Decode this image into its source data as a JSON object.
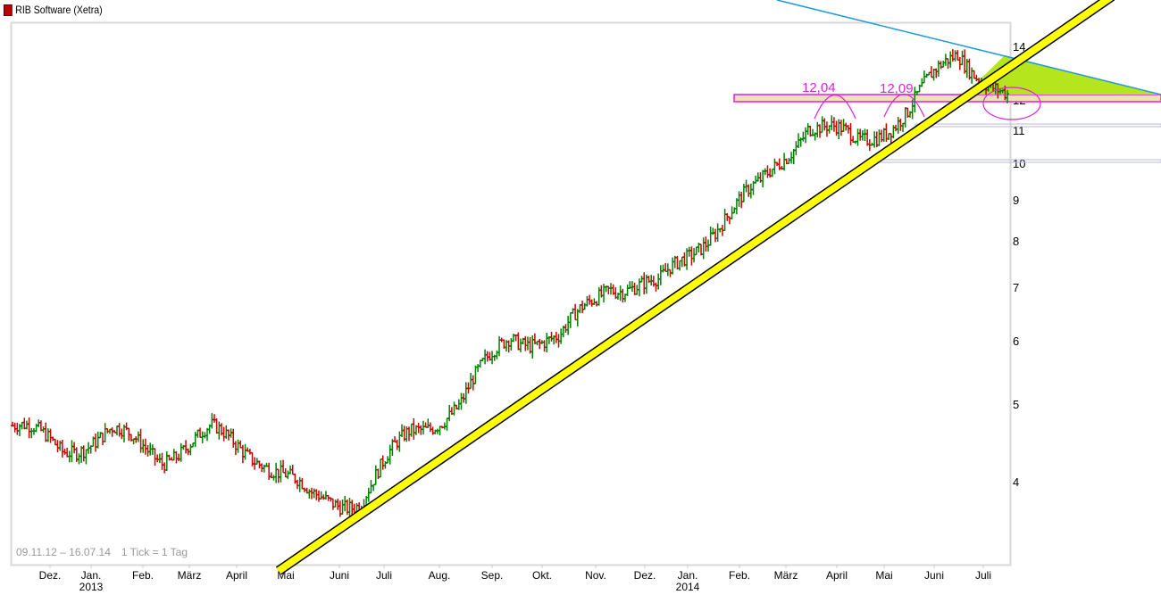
{
  "header": {
    "title": "RIB Software (Xetra)",
    "legend_color": "#c00000"
  },
  "footer": {
    "range": "09.11.12 – 16.07.14",
    "tick_info": "1 Tick = 1 Tag"
  },
  "colors": {
    "up": "#008000",
    "down": "#cc0000",
    "trend_support": "#ffff00",
    "trend_resistance": "#1e9bd7",
    "triangle_fill": "#b5e61d",
    "zone_fill": "#f0e2b4",
    "annotation": "#e020e0",
    "support_lines": "#c0c0e0"
  },
  "chart_data": {
    "type": "ohlc",
    "title": "RIB Software (Xetra)",
    "xlabel": "",
    "ylabel": "",
    "scale": "log",
    "ylim": [
      3.3,
      14.5
    ],
    "y_ticks": [
      4,
      5,
      6,
      7,
      8,
      9,
      10,
      11,
      12,
      13,
      14
    ],
    "x_ticks": [
      {
        "label": "Dez.",
        "sub": ""
      },
      {
        "label": "Jan.",
        "sub": "2013"
      },
      {
        "label": "Feb.",
        "sub": ""
      },
      {
        "label": "März",
        "sub": ""
      },
      {
        "label": "April",
        "sub": ""
      },
      {
        "label": "Mai",
        "sub": ""
      },
      {
        "label": "Juni",
        "sub": ""
      },
      {
        "label": "Juli",
        "sub": ""
      },
      {
        "label": "Aug.",
        "sub": ""
      },
      {
        "label": "Sep.",
        "sub": ""
      },
      {
        "label": "Okt.",
        "sub": ""
      },
      {
        "label": "Nov.",
        "sub": ""
      },
      {
        "label": "Dez.",
        "sub": ""
      },
      {
        "label": "Jan.",
        "sub": "2014"
      },
      {
        "label": "Feb.",
        "sub": ""
      },
      {
        "label": "März",
        "sub": ""
      },
      {
        "label": "April",
        "sub": ""
      },
      {
        "label": "Mai",
        "sub": ""
      },
      {
        "label": "Juni",
        "sub": ""
      },
      {
        "label": "Juli",
        "sub": ""
      }
    ],
    "date_range": "09.11.12 – 16.07.14",
    "approx_monthly_close": [
      {
        "month": "Nov 2012",
        "value": 4.7
      },
      {
        "month": "Dez 2012",
        "value": 4.4
      },
      {
        "month": "Jan 2013",
        "value": 4.6
      },
      {
        "month": "Feb 2013",
        "value": 4.3
      },
      {
        "month": "Mär 2013",
        "value": 4.6
      },
      {
        "month": "Apr 2013",
        "value": 4.3
      },
      {
        "month": "Mai 2013",
        "value": 3.8
      },
      {
        "month": "Jun 2013",
        "value": 3.8
      },
      {
        "month": "Jul 2013",
        "value": 4.6
      },
      {
        "month": "Aug 2013",
        "value": 5.0
      },
      {
        "month": "Sep 2013",
        "value": 6.1
      },
      {
        "month": "Okt 2013",
        "value": 6.0
      },
      {
        "month": "Nov 2013",
        "value": 7.1
      },
      {
        "month": "Dez 2013",
        "value": 7.0
      },
      {
        "month": "Jan 2014",
        "value": 8.2
      },
      {
        "month": "Feb 2014",
        "value": 9.3
      },
      {
        "month": "Mär 2014",
        "value": 11.2
      },
      {
        "month": "Apr 2014",
        "value": 10.6
      },
      {
        "month": "Mai 2014",
        "value": 11.6
      },
      {
        "month": "Jun 2014",
        "value": 13.8
      },
      {
        "month": "Jul 2014",
        "value": 12.0
      }
    ],
    "annotations": [
      {
        "text": "12,04",
        "type": "peak-label"
      },
      {
        "text": "12,09",
        "type": "peak-label"
      }
    ],
    "drawings": [
      "yellow rising support trendline from ~3.8 (Jun 2013)",
      "blue falling resistance trendline from top through ~13.2",
      "green triangle between resistance and support (~13-12)",
      "horizontal zone ~12.0-12.2",
      "horizontal support lines at ~11.0 and ~10.0",
      "ellipse around latest bars near 12"
    ]
  }
}
